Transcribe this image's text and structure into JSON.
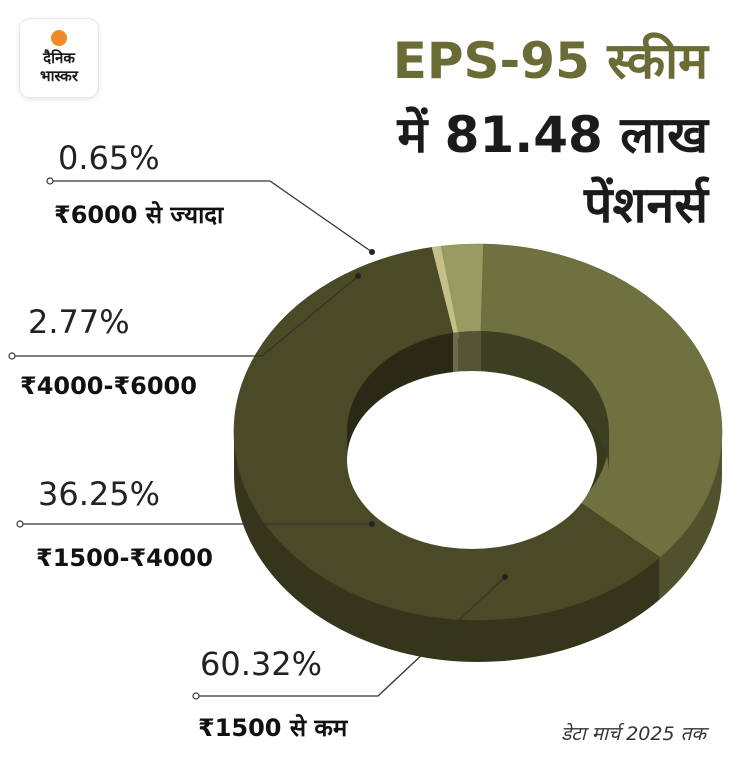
{
  "logo": {
    "line1": "दैनिक",
    "line2": "भास्कर"
  },
  "title": {
    "line1": "EPS-95 स्कीम",
    "line2": "में 81.48 लाख",
    "line3": "पेंशनर्स"
  },
  "source": "डेटा मार्च 2025 तक",
  "colors": {
    "accent": "#6b6b35"
  },
  "chart_data": {
    "type": "pie",
    "style": "3d-donut",
    "slices": [
      {
        "label": "₹6000 से ज्यादा",
        "value": 0.65,
        "display": "0.65%",
        "color": "#c3c08a"
      },
      {
        "label": "₹4000-₹6000",
        "value": 2.77,
        "display": "2.77%",
        "color": "#9a9a63"
      },
      {
        "label": "₹1500-₹4000",
        "value": 36.25,
        "display": "36.25%",
        "color": "#6f7240"
      },
      {
        "label": "₹1500 से कम",
        "value": 60.32,
        "display": "60.32%",
        "color": "#4a4a26"
      }
    ]
  }
}
